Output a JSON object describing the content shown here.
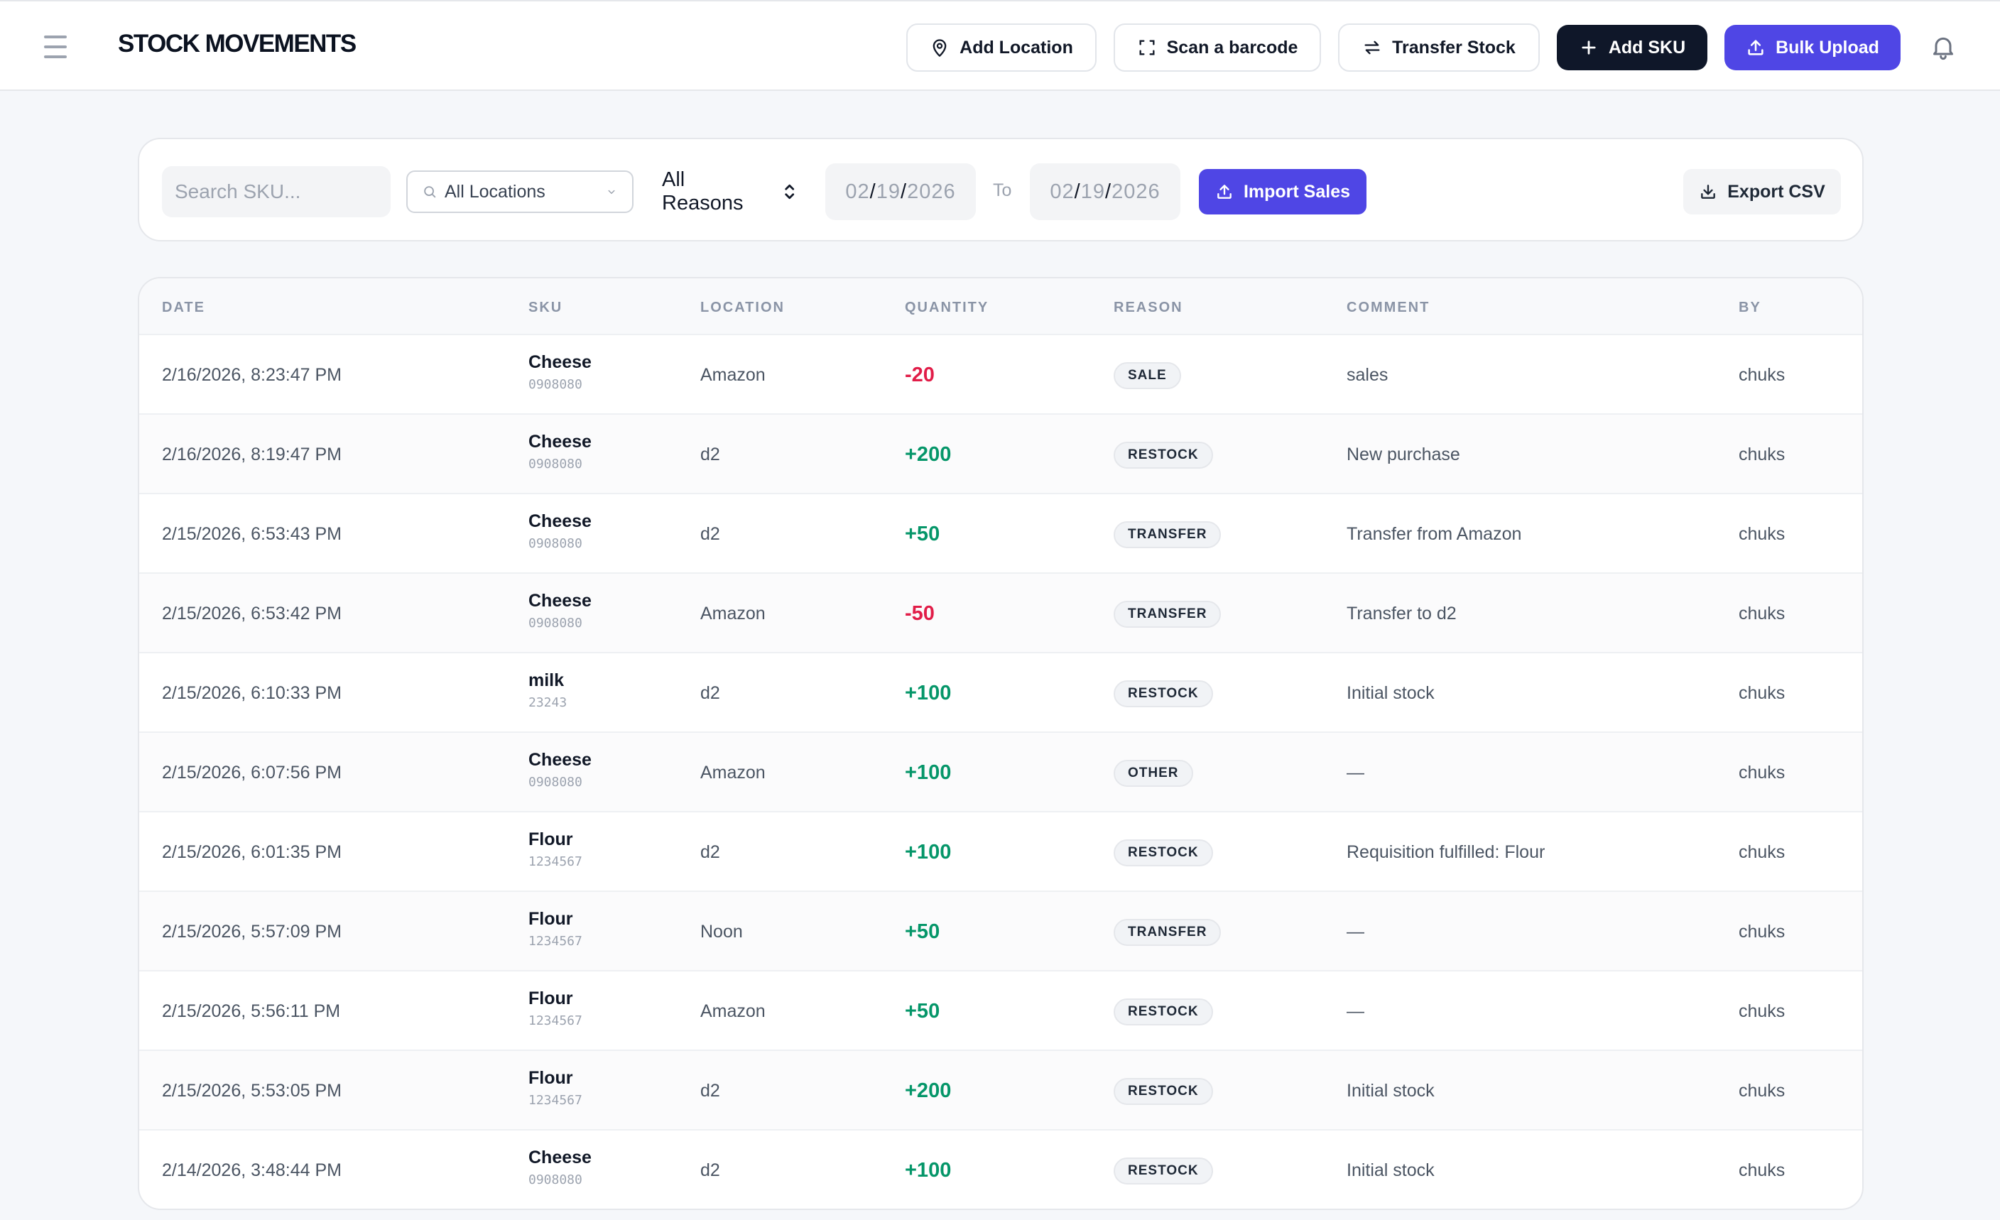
{
  "header": {
    "title": "STOCK MOVEMENTS",
    "buttons": {
      "add_location": "Add Location",
      "scan_barcode": "Scan a barcode",
      "transfer_stock": "Transfer Stock",
      "add_sku": "Add SKU",
      "bulk_upload": "Bulk Upload"
    },
    "icons": [
      "menu-icon",
      "map-pin-icon",
      "scan-icon",
      "transfer-arrows-icon",
      "plus-icon",
      "upload-icon",
      "bell-icon"
    ]
  },
  "filters": {
    "search_placeholder": "Search SKU...",
    "location": "All Locations",
    "reason": "All Reasons",
    "date_from": {
      "mm": "02",
      "dd": "19",
      "yyyy": "2026"
    },
    "to_label": "To",
    "date_to": {
      "mm": "02",
      "dd": "19",
      "yyyy": "2026"
    },
    "import_label": "Import Sales",
    "export_label": "Export CSV"
  },
  "table": {
    "columns": [
      "DATE",
      "SKU",
      "LOCATION",
      "QUANTITY",
      "REASON",
      "COMMENT",
      "BY"
    ],
    "rows": [
      {
        "date": "2/16/2026, 8:23:47 PM",
        "sku": "Cheese",
        "code": "0908080",
        "location": "Amazon",
        "quantity": "-20",
        "reason": "SALE",
        "comment": "sales",
        "by": "chuks"
      },
      {
        "date": "2/16/2026, 8:19:47 PM",
        "sku": "Cheese",
        "code": "0908080",
        "location": "d2",
        "quantity": "+200",
        "reason": "RESTOCK",
        "comment": "New purchase",
        "by": "chuks"
      },
      {
        "date": "2/15/2026, 6:53:43 PM",
        "sku": "Cheese",
        "code": "0908080",
        "location": "d2",
        "quantity": "+50",
        "reason": "TRANSFER",
        "comment": "Transfer from Amazon",
        "by": "chuks"
      },
      {
        "date": "2/15/2026, 6:53:42 PM",
        "sku": "Cheese",
        "code": "0908080",
        "location": "Amazon",
        "quantity": "-50",
        "reason": "TRANSFER",
        "comment": "Transfer to d2",
        "by": "chuks"
      },
      {
        "date": "2/15/2026, 6:10:33 PM",
        "sku": "milk",
        "code": "23243",
        "location": "d2",
        "quantity": "+100",
        "reason": "RESTOCK",
        "comment": "Initial stock",
        "by": "chuks"
      },
      {
        "date": "2/15/2026, 6:07:56 PM",
        "sku": "Cheese",
        "code": "0908080",
        "location": "Amazon",
        "quantity": "+100",
        "reason": "OTHER",
        "comment": "—",
        "by": "chuks"
      },
      {
        "date": "2/15/2026, 6:01:35 PM",
        "sku": "Flour",
        "code": "1234567",
        "location": "d2",
        "quantity": "+100",
        "reason": "RESTOCK",
        "comment": "Requisition fulfilled: Flour",
        "by": "chuks"
      },
      {
        "date": "2/15/2026, 5:57:09 PM",
        "sku": "Flour",
        "code": "1234567",
        "location": "Noon",
        "quantity": "+50",
        "reason": "TRANSFER",
        "comment": "—",
        "by": "chuks"
      },
      {
        "date": "2/15/2026, 5:56:11 PM",
        "sku": "Flour",
        "code": "1234567",
        "location": "Amazon",
        "quantity": "+50",
        "reason": "RESTOCK",
        "comment": "—",
        "by": "chuks"
      },
      {
        "date": "2/15/2026, 5:53:05 PM",
        "sku": "Flour",
        "code": "1234567",
        "location": "d2",
        "quantity": "+200",
        "reason": "RESTOCK",
        "comment": "Initial stock",
        "by": "chuks"
      },
      {
        "date": "2/14/2026, 3:48:44 PM",
        "sku": "Cheese",
        "code": "0908080",
        "location": "d2",
        "quantity": "+100",
        "reason": "RESTOCK",
        "comment": "Initial stock",
        "by": "chuks"
      }
    ]
  },
  "colors": {
    "primary": "#4f46e5",
    "dark": "#0f1729",
    "negative": "#e11d48",
    "positive": "#059669"
  }
}
